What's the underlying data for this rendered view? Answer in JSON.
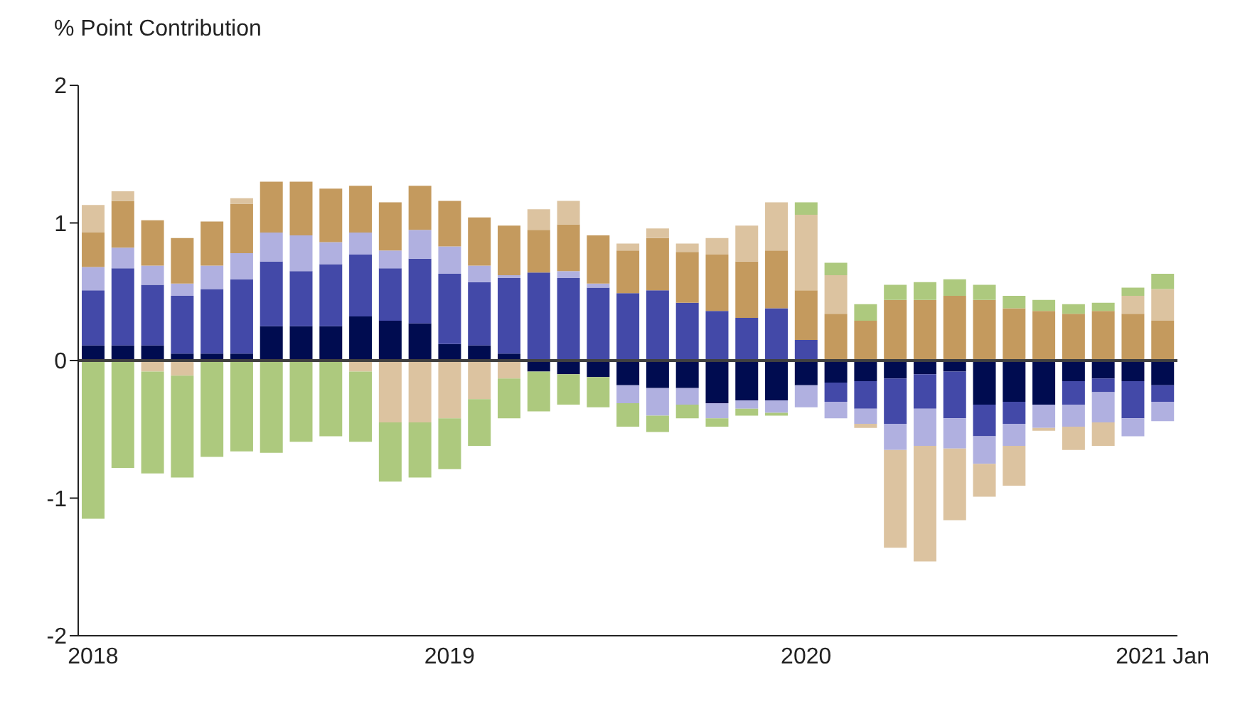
{
  "chart_data": {
    "type": "bar",
    "stacked": true,
    "ylabel": "% Point Contribution",
    "categories": [
      "2018",
      null,
      null,
      null,
      null,
      null,
      null,
      null,
      null,
      null,
      null,
      null,
      "2019",
      null,
      null,
      null,
      null,
      null,
      null,
      null,
      null,
      null,
      null,
      null,
      "2020",
      null,
      null,
      null,
      null,
      null,
      null,
      null,
      null,
      null,
      null,
      null,
      "2021 Jan"
    ],
    "series": [
      {
        "color": "#000c50",
        "values": [
          0.11,
          0.11,
          0.11,
          0.05,
          0.05,
          0.05,
          0.25,
          0.25,
          0.25,
          0.32,
          0.29,
          0.27,
          0.12,
          0.11,
          0.05,
          -0.08,
          -0.1,
          -0.12,
          -0.18,
          -0.2,
          -0.2,
          -0.31,
          -0.29,
          -0.29,
          -0.18,
          -0.16,
          -0.15,
          -0.13,
          -0.1,
          -0.08,
          -0.32,
          -0.3,
          -0.32,
          -0.15,
          -0.13,
          -0.15,
          -0.18
        ]
      },
      {
        "color": "#4349a8",
        "values": [
          0.4,
          0.56,
          0.44,
          0.42,
          0.47,
          0.54,
          0.47,
          0.4,
          0.45,
          0.45,
          0.38,
          0.47,
          0.51,
          0.46,
          0.55,
          0.64,
          0.6,
          0.53,
          0.49,
          0.51,
          0.42,
          0.36,
          0.31,
          0.38,
          0.15,
          -0.14,
          -0.2,
          -0.33,
          -0.25,
          -0.34,
          -0.23,
          -0.16,
          0,
          -0.17,
          -0.1,
          -0.27,
          -0.12
        ]
      },
      {
        "color": "#b0b0e0",
        "values": [
          0.17,
          0.15,
          0.14,
          0.09,
          0.17,
          0.19,
          0.21,
          0.26,
          0.16,
          0.16,
          0.13,
          0.21,
          0.2,
          0.12,
          0.02,
          null,
          0.05,
          0.03,
          -0.13,
          -0.2,
          -0.12,
          -0.11,
          -0.06,
          -0.09,
          -0.16,
          -0.12,
          -0.11,
          -0.19,
          -0.27,
          -0.22,
          -0.2,
          -0.16,
          -0.17,
          -0.16,
          -0.22,
          -0.13,
          -0.14
        ]
      },
      {
        "color": "#c49a5e",
        "values": [
          0.25,
          0.34,
          0.33,
          0.33,
          0.32,
          0.36,
          0.37,
          0.39,
          0.39,
          0.34,
          0.35,
          0.32,
          0.33,
          0.35,
          0.36,
          0.31,
          0.34,
          0.35,
          0.31,
          0.38,
          0.37,
          0.41,
          0.41,
          0.42,
          0.36,
          0.34,
          0.29,
          0.44,
          0.44,
          0.47,
          0.44,
          0.38,
          0.36,
          0.34,
          0.36,
          0.34,
          0.29
        ]
      },
      {
        "color": "#dcc3a0",
        "values": [
          0.2,
          0.07,
          -0.08,
          -0.11,
          0,
          0.04,
          0,
          0,
          0,
          -0.08,
          -0.45,
          -0.45,
          -0.42,
          -0.28,
          -0.13,
          0.15,
          0.17,
          0,
          0.05,
          0.07,
          0.06,
          0.12,
          0.26,
          0.35,
          0.55,
          0.28,
          -0.03,
          -0.71,
          -0.84,
          -0.52,
          -0.24,
          -0.29,
          -0.02,
          -0.17,
          -0.17,
          0.13,
          0.23
        ]
      },
      {
        "color": "#adc97e",
        "values": [
          -1.15,
          -0.78,
          -0.74,
          -0.74,
          -0.7,
          -0.66,
          -0.67,
          -0.59,
          -0.55,
          -0.51,
          -0.43,
          -0.4,
          -0.37,
          -0.34,
          -0.29,
          -0.29,
          -0.22,
          -0.22,
          -0.17,
          -0.12,
          -0.1,
          -0.06,
          -0.05,
          -0.02,
          0.09,
          0.09,
          0.12,
          0.11,
          0.13,
          0.12,
          0.11,
          0.09,
          0.08,
          0.07,
          0.06,
          0.06,
          0.11
        ]
      }
    ],
    "ylim": [
      -2,
      2
    ],
    "yticks": [
      -2,
      -1,
      0,
      1,
      2
    ],
    "ref_lines": [
      {
        "axis": "y",
        "value": 0,
        "color": "#404040"
      }
    ],
    "grid": false,
    "legend": false
  }
}
